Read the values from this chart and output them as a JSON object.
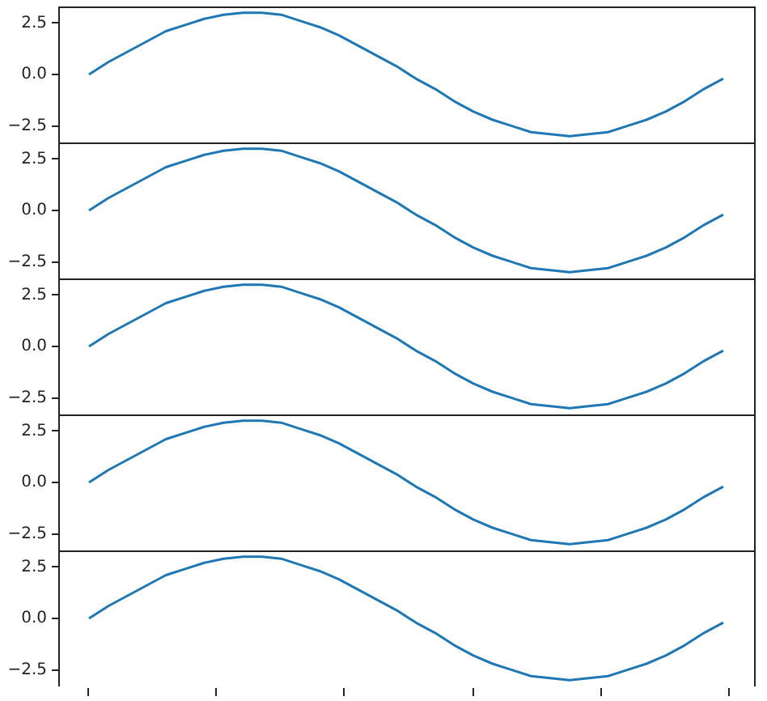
{
  "chart_data": [
    {
      "type": "line",
      "categories": [
        null,
        null,
        null,
        null,
        null,
        null,
        null,
        null,
        null,
        null,
        null,
        null,
        null,
        null,
        null,
        null,
        null,
        null,
        null,
        null,
        null,
        null,
        null,
        null,
        null,
        null,
        null,
        null,
        null,
        null,
        null,
        null,
        null,
        null
      ],
      "series": [
        {
          "color": "#1f77b4",
          "values": [
            0,
            0.6,
            1.1,
            1.6,
            2.1,
            2.4,
            2.7,
            2.9,
            3.0,
            3.0,
            2.9,
            2.6,
            2.3,
            1.9,
            1.4,
            0.9,
            0.4,
            -0.2,
            -0.7,
            -1.3,
            -1.8,
            -2.2,
            -2.5,
            -2.8,
            -2.9,
            -3.0,
            -2.9,
            -2.8,
            -2.5,
            -2.2,
            -1.8,
            -1.3,
            -0.7,
            -0.2
          ]
        }
      ],
      "ylim": [
        -3.3,
        3.3
      ],
      "yticks": [
        {
          "value": -2.5,
          "label": "−2.5"
        },
        {
          "value": 0,
          "label": "0.0"
        },
        {
          "value": 2.5,
          "label": "2.5"
        }
      ],
      "tick_labels": "y",
      "grid": false,
      "legend": false
    },
    {
      "type": "line",
      "categories": [
        null,
        null,
        null,
        null,
        null,
        null,
        null,
        null,
        null,
        null,
        null,
        null,
        null,
        null,
        null,
        null,
        null,
        null,
        null,
        null,
        null,
        null,
        null,
        null,
        null,
        null,
        null,
        null,
        null,
        null,
        null,
        null,
        null,
        null
      ],
      "series": [
        {
          "color": "#1f77b4",
          "values": [
            0,
            0.6,
            1.1,
            1.6,
            2.1,
            2.4,
            2.7,
            2.9,
            3.0,
            3.0,
            2.9,
            2.6,
            2.3,
            1.9,
            1.4,
            0.9,
            0.4,
            -0.2,
            -0.7,
            -1.3,
            -1.8,
            -2.2,
            -2.5,
            -2.8,
            -2.9,
            -3.0,
            -2.9,
            -2.8,
            -2.5,
            -2.2,
            -1.8,
            -1.3,
            -0.7,
            -0.2
          ]
        }
      ],
      "ylim": [
        -3.3,
        3.3
      ],
      "yticks": [
        {
          "value": -2.5,
          "label": "−2.5"
        },
        {
          "value": 0,
          "label": "0.0"
        },
        {
          "value": 2.5,
          "label": "2.5"
        }
      ],
      "tick_labels": "y",
      "grid": false,
      "legend": false
    },
    {
      "type": "line",
      "categories": [
        null,
        null,
        null,
        null,
        null,
        null,
        null,
        null,
        null,
        null,
        null,
        null,
        null,
        null,
        null,
        null,
        null,
        null,
        null,
        null,
        null,
        null,
        null,
        null,
        null,
        null,
        null,
        null,
        null,
        null,
        null,
        null,
        null,
        null
      ],
      "series": [
        {
          "color": "#1f77b4",
          "values": [
            0,
            0.6,
            1.1,
            1.6,
            2.1,
            2.4,
            2.7,
            2.9,
            3.0,
            3.0,
            2.9,
            2.6,
            2.3,
            1.9,
            1.4,
            0.9,
            0.4,
            -0.2,
            -0.7,
            -1.3,
            -1.8,
            -2.2,
            -2.5,
            -2.8,
            -2.9,
            -3.0,
            -2.9,
            -2.8,
            -2.5,
            -2.2,
            -1.8,
            -1.3,
            -0.7,
            -0.2
          ]
        }
      ],
      "ylim": [
        -3.3,
        3.3
      ],
      "yticks": [
        {
          "value": -2.5,
          "label": "−2.5"
        },
        {
          "value": 0,
          "label": "0.0"
        },
        {
          "value": 2.5,
          "label": "2.5"
        }
      ],
      "tick_labels": "y",
      "grid": false,
      "legend": false
    },
    {
      "type": "line",
      "categories": [
        null,
        null,
        null,
        null,
        null,
        null,
        null,
        null,
        null,
        null,
        null,
        null,
        null,
        null,
        null,
        null,
        null,
        null,
        null,
        null,
        null,
        null,
        null,
        null,
        null,
        null,
        null,
        null,
        null,
        null,
        null,
        null,
        null,
        null
      ],
      "series": [
        {
          "color": "#1f77b4",
          "values": [
            0,
            0.6,
            1.1,
            1.6,
            2.1,
            2.4,
            2.7,
            2.9,
            3.0,
            3.0,
            2.9,
            2.6,
            2.3,
            1.9,
            1.4,
            0.9,
            0.4,
            -0.2,
            -0.7,
            -1.3,
            -1.8,
            -2.2,
            -2.5,
            -2.8,
            -2.9,
            -3.0,
            -2.9,
            -2.8,
            -2.5,
            -2.2,
            -1.8,
            -1.3,
            -0.7,
            -0.2
          ]
        }
      ],
      "ylim": [
        -3.3,
        3.3
      ],
      "yticks": [
        {
          "value": -2.5,
          "label": "−2.5"
        },
        {
          "value": 0,
          "label": "0.0"
        },
        {
          "value": 2.5,
          "label": "2.5"
        }
      ],
      "tick_labels": "y",
      "grid": false,
      "legend": false
    },
    {
      "type": "line",
      "categories": [
        null,
        null,
        null,
        null,
        null,
        null,
        null,
        null,
        null,
        null,
        null,
        null,
        null,
        null,
        null,
        null,
        null,
        null,
        null,
        null,
        null,
        null,
        null,
        null,
        null,
        null,
        null,
        null,
        null,
        null,
        null,
        null,
        null,
        null
      ],
      "series": [
        {
          "color": "#1f77b4",
          "values": [
            0,
            0.6,
            1.1,
            1.6,
            2.1,
            2.4,
            2.7,
            2.9,
            3.0,
            3.0,
            2.9,
            2.6,
            2.3,
            1.9,
            1.4,
            0.9,
            0.4,
            -0.2,
            -0.7,
            -1.3,
            -1.8,
            -2.2,
            -2.5,
            -2.8,
            -2.9,
            -3.0,
            -2.9,
            -2.8,
            -2.5,
            -2.2,
            -1.8,
            -1.3,
            -0.7,
            -0.2
          ]
        }
      ],
      "ylim": [
        -3.3,
        3.3
      ],
      "yticks": [
        {
          "value": -2.5,
          "label": "−2.5"
        },
        {
          "value": 0,
          "label": "0.0"
        },
        {
          "value": 2.5,
          "label": "2.5"
        }
      ],
      "tick_labels": "y",
      "grid": false,
      "legend": false
    }
  ]
}
